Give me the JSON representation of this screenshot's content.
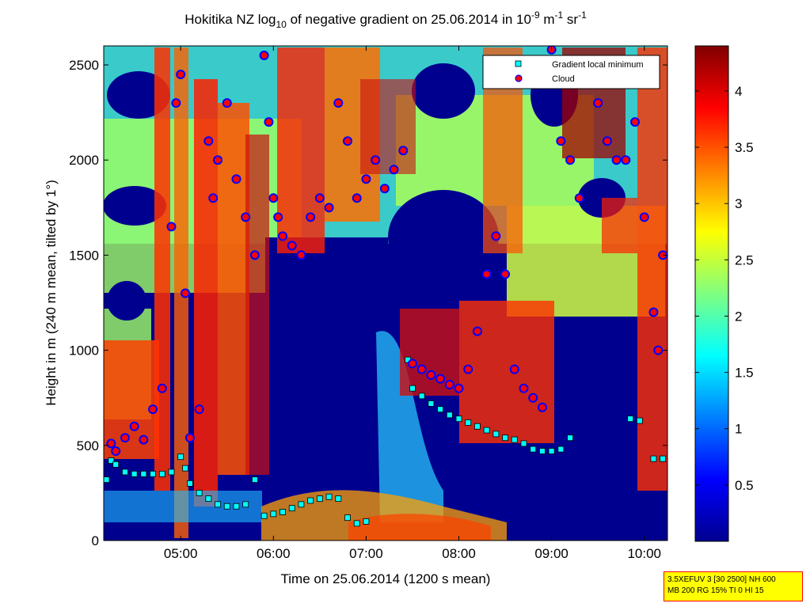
{
  "chart_data": {
    "type": "heatmap",
    "title": {
      "prefix": "Hokitika NZ log",
      "log_sub": "10",
      "mid": " of negative gradient on 25.06.2014 in 10",
      "exp1": "-9",
      "unit_m": " m",
      "exp2": "-1",
      "unit_sr": " sr",
      "exp3": "-1"
    },
    "xlabel": "Time on 25.06.2014 (1200 s mean)",
    "ylabel": "Height in m (240 m mean, tilted by 1°)",
    "x_ticks": [
      {
        "label": "05:00",
        "value": 5.0
      },
      {
        "label": "06:00",
        "value": 6.0
      },
      {
        "label": "07:00",
        "value": 7.0
      },
      {
        "label": "08:00",
        "value": 8.0
      },
      {
        "label": "09:00",
        "value": 9.0
      },
      {
        "label": "10:00",
        "value": 10.0
      }
    ],
    "xlim": [
      4.17,
      10.25
    ],
    "y_ticks": [
      {
        "label": "0",
        "value": 0
      },
      {
        "label": "500",
        "value": 500
      },
      {
        "label": "1000",
        "value": 1000
      },
      {
        "label": "1500",
        "value": 1500
      },
      {
        "label": "2000",
        "value": 2000
      },
      {
        "label": "2500",
        "value": 2500
      }
    ],
    "ylim": [
      0,
      2600
    ],
    "colorbar": {
      "range": [
        0,
        4.4
      ],
      "ticks": [
        {
          "label": "0.5",
          "value": 0.5
        },
        {
          "label": "1",
          "value": 1
        },
        {
          "label": "1.5",
          "value": 1.5
        },
        {
          "label": "2",
          "value": 2
        },
        {
          "label": "2.5",
          "value": 2.5
        },
        {
          "label": "3",
          "value": 3
        },
        {
          "label": "3.5",
          "value": 3.5
        },
        {
          "label": "4",
          "value": 4
        }
      ]
    },
    "legend": {
      "placement": "top-right",
      "entries": [
        {
          "label": "Gradient local minimum",
          "color": "#00ffff",
          "marker": "square"
        },
        {
          "label": "Cloud",
          "color": "#ff0000",
          "marker": "circle"
        }
      ]
    },
    "series": [
      {
        "name": "Gradient local minimum",
        "points": [
          [
            4.2,
            320
          ],
          [
            4.25,
            420
          ],
          [
            4.3,
            400
          ],
          [
            4.4,
            360
          ],
          [
            4.5,
            350
          ],
          [
            4.6,
            350
          ],
          [
            4.7,
            350
          ],
          [
            4.8,
            350
          ],
          [
            4.9,
            360
          ],
          [
            5.0,
            440
          ],
          [
            5.05,
            380
          ],
          [
            5.1,
            300
          ],
          [
            5.2,
            250
          ],
          [
            5.3,
            220
          ],
          [
            5.4,
            190
          ],
          [
            5.5,
            180
          ],
          [
            5.6,
            180
          ],
          [
            5.7,
            190
          ],
          [
            5.8,
            320
          ],
          [
            5.9,
            130
          ],
          [
            6.0,
            140
          ],
          [
            6.1,
            150
          ],
          [
            6.2,
            170
          ],
          [
            6.3,
            190
          ],
          [
            6.4,
            210
          ],
          [
            6.5,
            220
          ],
          [
            6.6,
            230
          ],
          [
            6.7,
            220
          ],
          [
            6.8,
            120
          ],
          [
            6.9,
            90
          ],
          [
            7.0,
            100
          ],
          [
            7.45,
            950
          ],
          [
            7.5,
            800
          ],
          [
            7.6,
            760
          ],
          [
            7.7,
            720
          ],
          [
            7.8,
            690
          ],
          [
            7.9,
            660
          ],
          [
            8.0,
            640
          ],
          [
            8.1,
            620
          ],
          [
            8.2,
            600
          ],
          [
            8.3,
            580
          ],
          [
            8.4,
            560
          ],
          [
            8.5,
            540
          ],
          [
            8.6,
            530
          ],
          [
            8.7,
            510
          ],
          [
            8.8,
            480
          ],
          [
            8.9,
            470
          ],
          [
            9.0,
            470
          ],
          [
            9.1,
            480
          ],
          [
            9.2,
            540
          ],
          [
            9.85,
            640
          ],
          [
            9.95,
            630
          ],
          [
            10.1,
            430
          ],
          [
            10.2,
            430
          ]
        ]
      },
      {
        "name": "Cloud",
        "points": [
          [
            4.25,
            510
          ],
          [
            4.3,
            470
          ],
          [
            4.4,
            540
          ],
          [
            4.5,
            600
          ],
          [
            4.6,
            530
          ],
          [
            4.7,
            690
          ],
          [
            4.8,
            800
          ],
          [
            4.9,
            1650
          ],
          [
            4.95,
            2300
          ],
          [
            5.0,
            2450
          ],
          [
            5.05,
            1300
          ],
          [
            5.1,
            540
          ],
          [
            5.2,
            690
          ],
          [
            5.3,
            2100
          ],
          [
            5.35,
            1800
          ],
          [
            5.4,
            2000
          ],
          [
            5.5,
            2300
          ],
          [
            5.6,
            1900
          ],
          [
            5.7,
            1700
          ],
          [
            5.8,
            1500
          ],
          [
            5.9,
            2550
          ],
          [
            5.95,
            2200
          ],
          [
            6.0,
            1800
          ],
          [
            6.05,
            1700
          ],
          [
            6.1,
            1600
          ],
          [
            6.2,
            1550
          ],
          [
            6.3,
            1500
          ],
          [
            6.4,
            1700
          ],
          [
            6.5,
            1800
          ],
          [
            6.6,
            1750
          ],
          [
            6.7,
            2300
          ],
          [
            6.8,
            2100
          ],
          [
            6.9,
            1800
          ],
          [
            7.0,
            1900
          ],
          [
            7.1,
            2000
          ],
          [
            7.2,
            1850
          ],
          [
            7.3,
            1950
          ],
          [
            7.4,
            2050
          ],
          [
            7.5,
            930
          ],
          [
            7.6,
            900
          ],
          [
            7.7,
            870
          ],
          [
            7.8,
            850
          ],
          [
            7.9,
            820
          ],
          [
            8.0,
            800
          ],
          [
            8.1,
            900
          ],
          [
            8.2,
            1100
          ],
          [
            8.3,
            1400
          ],
          [
            8.4,
            1600
          ],
          [
            8.5,
            1400
          ],
          [
            8.6,
            900
          ],
          [
            8.7,
            800
          ],
          [
            8.8,
            750
          ],
          [
            8.9,
            700
          ],
          [
            9.0,
            2580
          ],
          [
            9.1,
            2100
          ],
          [
            9.2,
            2000
          ],
          [
            9.3,
            1800
          ],
          [
            9.5,
            2300
          ],
          [
            9.6,
            2100
          ],
          [
            9.7,
            2000
          ],
          [
            9.8,
            2000
          ],
          [
            9.9,
            2200
          ],
          [
            10.0,
            1700
          ],
          [
            10.1,
            1200
          ],
          [
            10.15,
            1000
          ],
          [
            10.2,
            1500
          ]
        ]
      }
    ]
  },
  "annotation": {
    "line1": "3.5XEFUV 3 [30 2500] NH 600",
    "line2": "MB 200 RG 15% TI 0 HI 15"
  },
  "colors": {
    "background_low": "#00008f",
    "colormap": "jet",
    "minimum_marker": "#00ffff",
    "cloud_marker_fill": "#ff0000",
    "cloud_marker_edge": "#0000ff",
    "annotation_bg": "#ffff00",
    "annotation_border": "#ff0000"
  }
}
